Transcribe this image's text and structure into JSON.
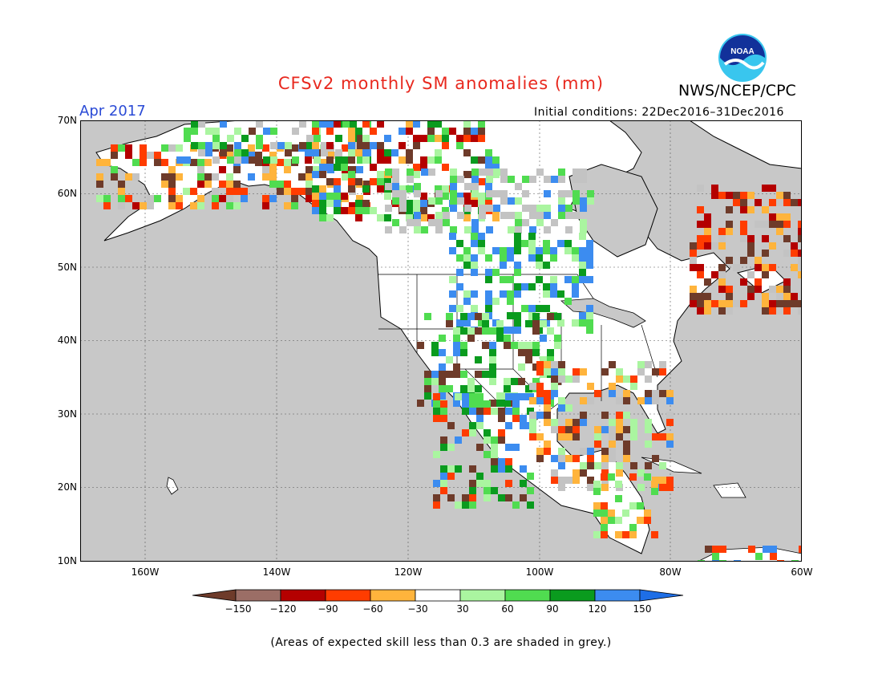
{
  "title": "CFSv2 monthly SM anomalies (mm)",
  "agency": "NWS/NCEP/CPC",
  "logo_text": "NOAA",
  "period": "Apr 2017",
  "initial_conditions": "Initial conditions: 22Dec2016–31Dec2016",
  "lat_labels": [
    "70N",
    "60N",
    "50N",
    "40N",
    "30N",
    "20N",
    "10N"
  ],
  "lon_labels": [
    "160W",
    "140W",
    "120W",
    "100W",
    "80W",
    "60W"
  ],
  "colorbar": {
    "ticks": [
      "−150",
      "−120",
      "−90",
      "−60",
      "−30",
      "30",
      "60",
      "90",
      "120",
      "150"
    ],
    "colors": [
      "#6e3b2a",
      "#9b6e66",
      "#b40000",
      "#ff3c00",
      "#ffb43c",
      "#ffffff",
      "#aaf5a0",
      "#50dc50",
      "#0a9b1e",
      "#3c8cf0",
      "#1e6ee6"
    ]
  },
  "colors": {
    "ocean": "#c8c8c8",
    "land": "#ffffff",
    "grey_skill": "#c3c3c3",
    "title": "#e8281e",
    "period": "#2b4bd6"
  },
  "footnote": "(Areas of expected skill less than 0.3 are shaded in grey.)"
}
